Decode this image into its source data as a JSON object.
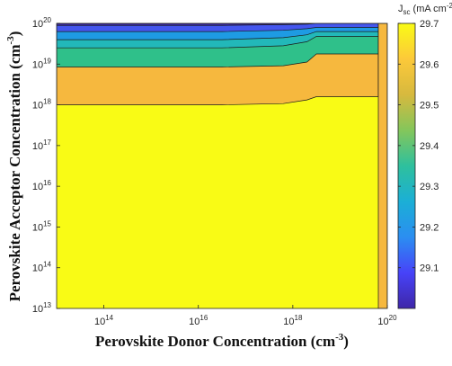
{
  "chart_data": {
    "type": "contour",
    "title": "",
    "xlabel": "Perovskite Donor Concentration (cm⁻³)",
    "ylabel": "Perovskite Acceptor Concentration (cm⁻³)",
    "x_scale": "log",
    "y_scale": "log",
    "xlim": [
      10000000000000.0,
      1e+20
    ],
    "ylim": [
      10000000000000.0,
      1e+20
    ],
    "x_ticks": [
      {
        "value": 100000000000000.0,
        "base": "10",
        "exp": "14"
      },
      {
        "value": 1e+16,
        "base": "10",
        "exp": "16"
      },
      {
        "value": 1e+18,
        "base": "10",
        "exp": "18"
      },
      {
        "value": 1e+20,
        "base": "10",
        "exp": "20"
      }
    ],
    "y_ticks": [
      {
        "value": 10000000000000.0,
        "base": "10",
        "exp": "13"
      },
      {
        "value": 100000000000000.0,
        "base": "10",
        "exp": "14"
      },
      {
        "value": 1000000000000000.0,
        "base": "10",
        "exp": "15"
      },
      {
        "value": 1e+16,
        "base": "10",
        "exp": "16"
      },
      {
        "value": 1e+17,
        "base": "10",
        "exp": "17"
      },
      {
        "value": 1e+18,
        "base": "10",
        "exp": "18"
      },
      {
        "value": 1e+19,
        "base": "10",
        "exp": "19"
      },
      {
        "value": 1e+20,
        "base": "10",
        "exp": "20"
      }
    ],
    "colorbar": {
      "label": "J",
      "label_sub": "sc",
      "label_units": " (mA cm",
      "label_units_sup": "-2",
      "label_units_end": ")",
      "range": [
        29.0,
        29.7
      ],
      "ticks": [
        "29.1",
        "29.2",
        "29.3",
        "29.4",
        "29.5",
        "29.6",
        "29.7"
      ],
      "tick_values": [
        29.1,
        29.2,
        29.3,
        29.4,
        29.5,
        29.6,
        29.7
      ],
      "colormap": [
        "#3e26a8",
        "#4743f8",
        "#2b8ef1",
        "#1bafd6",
        "#2ec09d",
        "#84c65b",
        "#d7b93e",
        "#fcc93a",
        "#f9fb15"
      ]
    },
    "contour_levels": [
      {
        "jsc_min": 29.0,
        "jsc_max": 29.1,
        "color": "#3b2b98",
        "boundary_logN_A": [
          19.95,
          19.95,
          19.97,
          19.98,
          20.0
        ]
      },
      {
        "jsc_min": 29.1,
        "jsc_max": 29.2,
        "color": "#4456ee",
        "boundary_logN_A": [
          19.8,
          19.8,
          19.83,
          19.87,
          19.9
        ]
      },
      {
        "jsc_min": 29.2,
        "jsc_max": 29.3,
        "color": "#1e9be3",
        "boundary_logN_A": [
          19.6,
          19.6,
          19.65,
          19.72,
          19.8
        ]
      },
      {
        "jsc_min": 29.3,
        "jsc_max": 29.4,
        "color": "#22b8b9",
        "boundary_logN_A": [
          19.4,
          19.4,
          19.45,
          19.55,
          19.68
        ]
      },
      {
        "jsc_min": 29.4,
        "jsc_max": 29.5,
        "color": "#2fc08a",
        "boundary_logN_A": [
          18.93,
          18.93,
          18.96,
          19.05,
          19.25
        ]
      },
      {
        "jsc_min": 29.5,
        "jsc_max": 29.6,
        "color": "#f6b83e",
        "boundary_logN_A": [
          18.0,
          18.0,
          18.03,
          18.12,
          18.2
        ]
      },
      {
        "jsc_min": 29.6,
        "jsc_max": 29.7,
        "color": "#f9fb15",
        "boundary_logN_A": []
      }
    ],
    "boundary_logN_D": [
      13.0,
      16.5,
      17.8,
      18.3,
      18.5
    ]
  }
}
